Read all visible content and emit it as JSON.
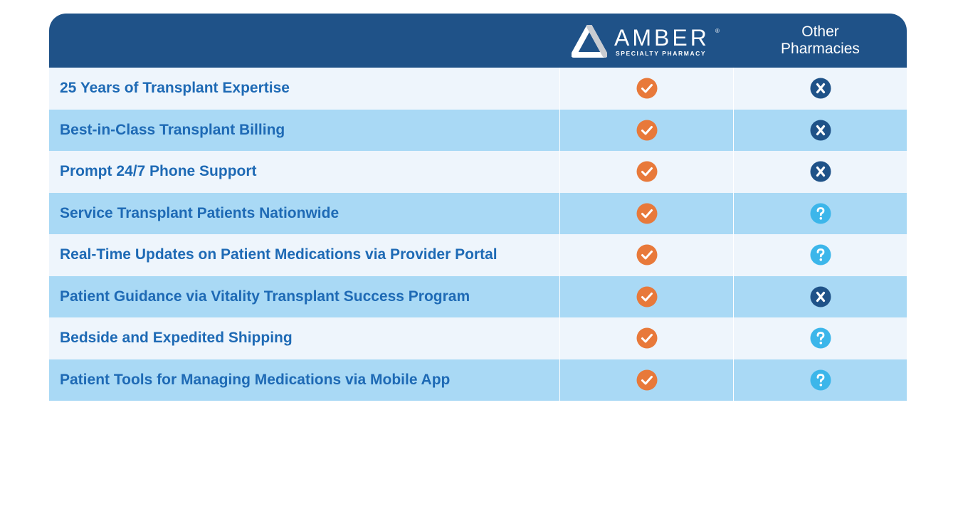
{
  "header": {
    "brand_name": "AMBER",
    "brand_registered": "®",
    "brand_subtitle": "SPECIALTY PHARMACY",
    "other_line1": "Other",
    "other_line2": "Pharmacies"
  },
  "colors": {
    "header_bg": "#1f5288",
    "row_light": "#eef5fc",
    "row_dark": "#a9d9f5",
    "feature_text": "#1e6ab5",
    "check": "#e8793a",
    "x_mark": "#1f5288",
    "question": "#3cb6ea"
  },
  "rows": [
    {
      "feature": "25 Years of Transplant Expertise",
      "amber": "check-icon",
      "other": "x-icon"
    },
    {
      "feature": "Best-in-Class Transplant Billing",
      "amber": "check-icon",
      "other": "x-icon"
    },
    {
      "feature": "Prompt 24/7 Phone Support",
      "amber": "check-icon",
      "other": "x-icon"
    },
    {
      "feature": "Service Transplant Patients Nationwide",
      "amber": "check-icon",
      "other": "question-icon"
    },
    {
      "feature": "Real-Time Updates on Patient Medications via Provider Portal",
      "amber": "check-icon",
      "other": "question-icon"
    },
    {
      "feature": "Patient Guidance via Vitality Transplant Success Program",
      "amber": "check-icon",
      "other": "x-icon"
    },
    {
      "feature": "Bedside and Expedited Shipping",
      "amber": "check-icon",
      "other": "question-icon"
    },
    {
      "feature": "Patient Tools for Managing Medications via Mobile App",
      "amber": "check-icon",
      "other": "question-icon"
    }
  ]
}
